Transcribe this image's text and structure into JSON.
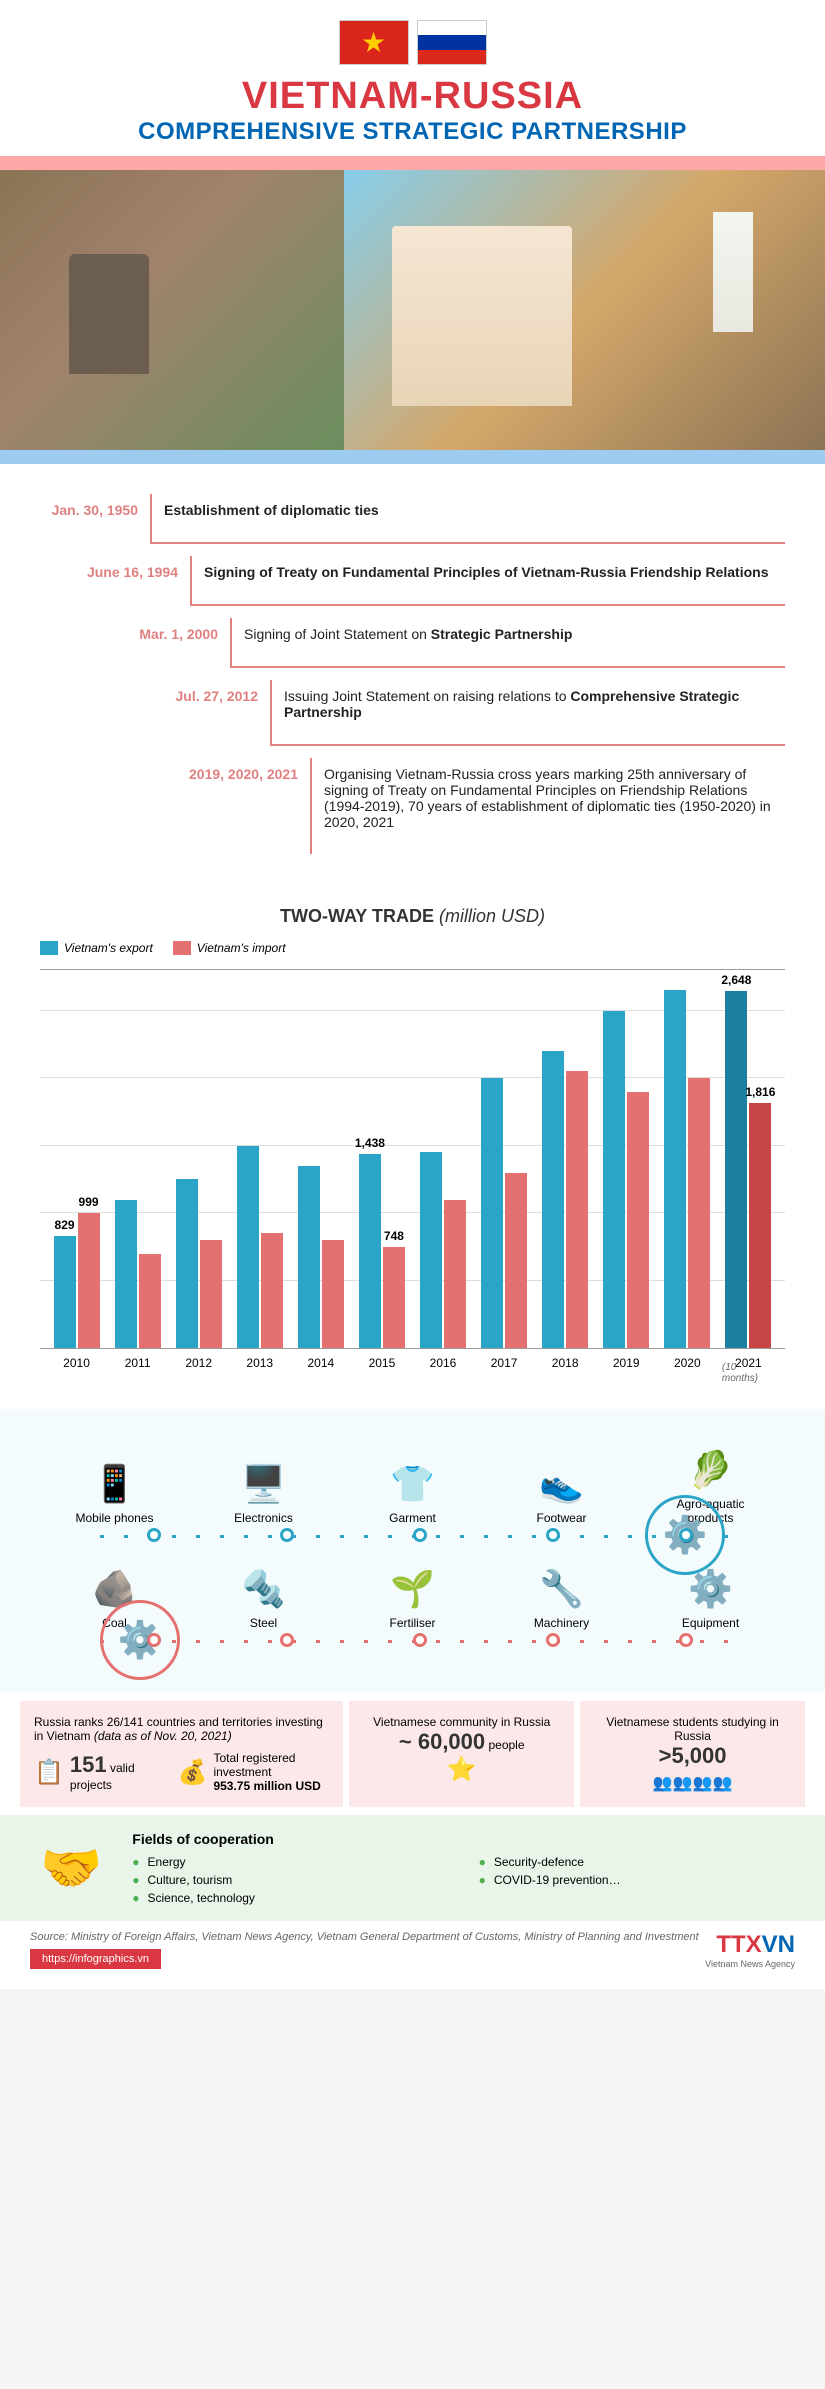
{
  "header": {
    "title1": "VIETNAM-RUSSIA",
    "title2": "COMPREHENSIVE STRATEGIC PARTNERSHIP"
  },
  "timeline": [
    {
      "date": "Jan. 30, 1950",
      "text": "<strong>Establishment of diplomatic ties</strong>"
    },
    {
      "date": "June 16, 1994",
      "text": "<strong>Signing of Treaty on Fundamental Principles of Vietnam-Russia Friendship Relations</strong>"
    },
    {
      "date": "Mar. 1, 2000",
      "text": "Signing of Joint Statement on <strong>Strategic Partnership</strong>"
    },
    {
      "date": "Jul. 27, 2012",
      "text": "Issuing Joint Statement on raising relations to <strong>Comprehensive Strategic Partnership</strong>"
    },
    {
      "date": "2019, 2020, 2021",
      "text": "Organising Vietnam-Russia cross years marking 25th anniversary of signing of Treaty on Fundamental Principles on Friendship Relations (1994-2019), 70 years of establishment of diplomatic ties (1950-2020) in 2020, 2021"
    }
  ],
  "chart": {
    "title": "TWO-WAY TRADE",
    "subtitle": "(million USD)",
    "legend_export": "Vietnam's export",
    "legend_import": "Vietnam's import",
    "export_color": "#2ba5c7",
    "import_color": "#e57070",
    "max_value": 2800,
    "grid_steps": [
      500,
      1000,
      1500,
      2000,
      2500
    ],
    "years": [
      "2010",
      "2011",
      "2012",
      "2013",
      "2014",
      "2015",
      "2016",
      "2017",
      "2018",
      "2019",
      "2020",
      "2021"
    ],
    "year_note": "(10 months)",
    "export_values": [
      829,
      1100,
      1250,
      1500,
      1350,
      1438,
      1450,
      2000,
      2200,
      2500,
      2650,
      2648
    ],
    "import_values": [
      999,
      700,
      800,
      850,
      800,
      748,
      1100,
      1300,
      2050,
      1900,
      2000,
      1816
    ],
    "labels": {
      "0_exp": "829",
      "0_imp": "999",
      "5_exp": "1,438",
      "5_imp": "748",
      "11_exp": "2,648",
      "11_imp": "1,816"
    }
  },
  "products": {
    "exports": [
      {
        "label": "Mobile phones",
        "icon": "📱"
      },
      {
        "label": "Electronics",
        "icon": "🖥️"
      },
      {
        "label": "Garment",
        "icon": "👕"
      },
      {
        "label": "Footwear",
        "icon": "👟"
      },
      {
        "label": "Agro-aquatic products",
        "icon": "🥬"
      }
    ],
    "imports": [
      {
        "label": "Coal",
        "icon": "🪨"
      },
      {
        "label": "Steel",
        "icon": "🔩"
      },
      {
        "label": "Fertiliser",
        "icon": "🌱"
      },
      {
        "label": "Machinery",
        "icon": "🔧"
      },
      {
        "label": "Equipment",
        "icon": "⚙️"
      }
    ]
  },
  "stats": {
    "box1_text": "Russia ranks 26/141 countries and territories investing in Vietnam",
    "box1_note": "(data as of Nov. 20, 2021)",
    "box1_num": "151",
    "box1_label": "valid projects",
    "box1_inv_label": "Total registered investment",
    "box1_inv_val": "953.75 million USD",
    "box2_text": "Vietnamese community in Russia",
    "box2_num": "~ 60,000",
    "box2_unit": "people",
    "box3_text": "Vietnamese students studying in Russia",
    "box3_num": ">5,000"
  },
  "coop": {
    "title": "Fields of cooperation",
    "items": [
      "Energy",
      "Security-defence",
      "Culture, tourism",
      "COVID-19 prevention…",
      "Science, technology"
    ]
  },
  "footer": {
    "source": "Source: Ministry of Foreign Affairs, Vietnam News Agency, Vietnam General Department of Customs, Ministry of Planning and Investment",
    "url": "https://infographics.vn",
    "logo_sub": "Vietnam News Agency"
  }
}
